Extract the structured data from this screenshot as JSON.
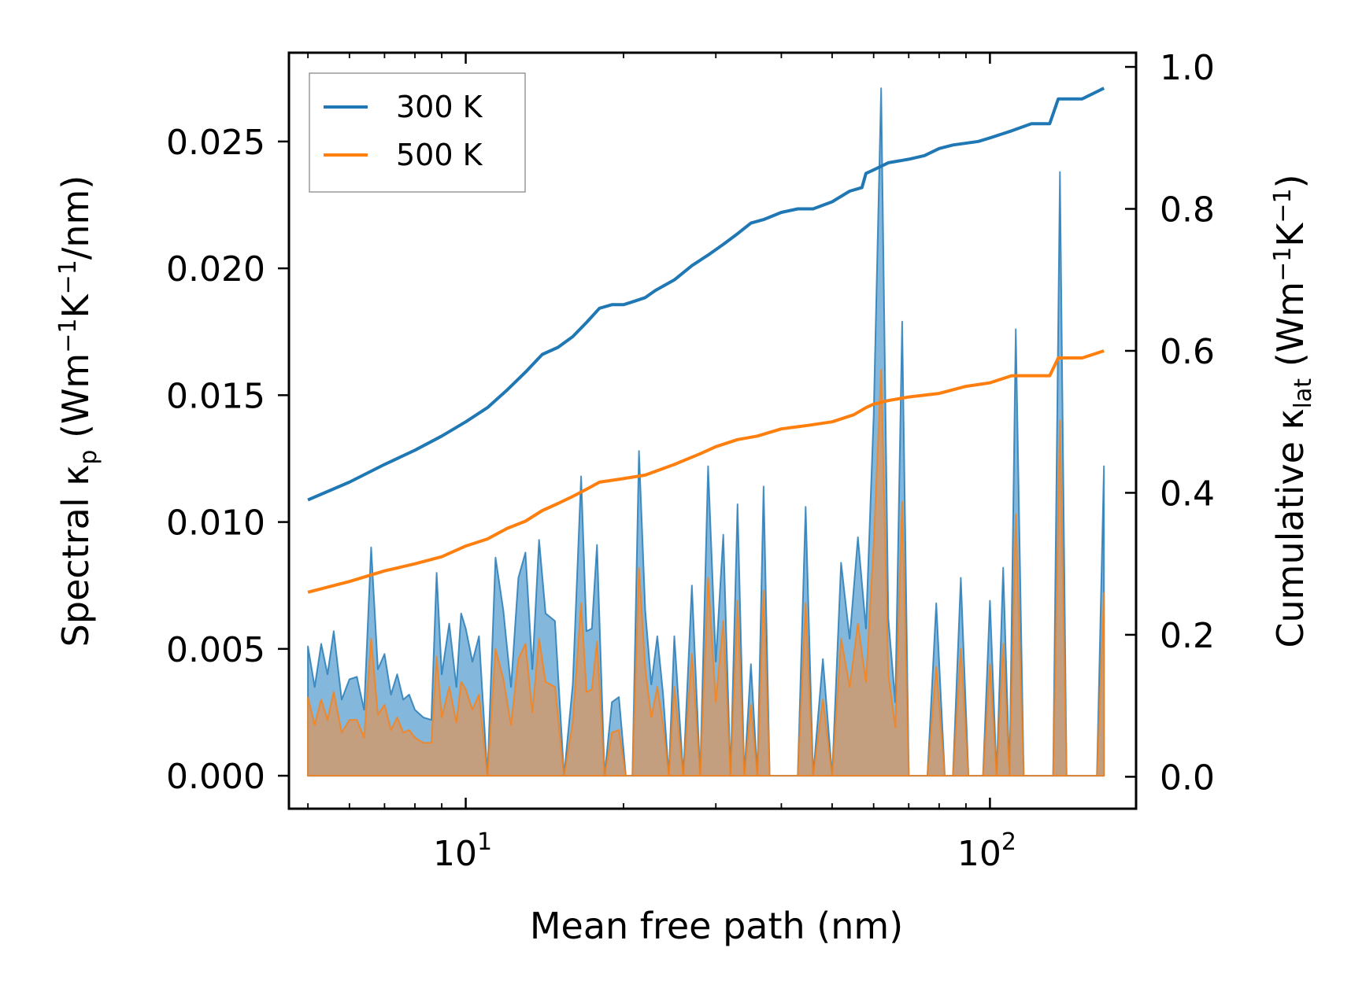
{
  "chart_data": {
    "type": "line",
    "x_scale": "log",
    "xlabel": "Mean free path (nm)",
    "ylabel_left": {
      "base": "Spectral κ",
      "sub": "p",
      "units_pre": " (Wm",
      "sup1": "−1",
      "mid": "K",
      "sup2": "−1",
      "units_post": "/nm)"
    },
    "ylabel_right": {
      "base": "Cumulative κ",
      "sub": "lat",
      "units_pre": " (Wm",
      "sup1": "−1",
      "mid": "K",
      "sup2": "−1",
      "units_post": ")"
    },
    "xlim": [
      4.6,
      190
    ],
    "ylim_left": [
      -0.0013,
      0.0285
    ],
    "ylim_right": [
      -0.045,
      1.02
    ],
    "x_ticks": [
      {
        "value": 10,
        "base": "10",
        "exp": "1"
      },
      {
        "value": 100,
        "base": "10",
        "exp": "2"
      }
    ],
    "y_ticks_left": [
      {
        "value": 0.0,
        "label": "0.000"
      },
      {
        "value": 0.005,
        "label": "0.005"
      },
      {
        "value": 0.01,
        "label": "0.010"
      },
      {
        "value": 0.015,
        "label": "0.015"
      },
      {
        "value": 0.02,
        "label": "0.020"
      },
      {
        "value": 0.025,
        "label": "0.025"
      }
    ],
    "y_ticks_right": [
      {
        "value": 0.0,
        "label": "0.0"
      },
      {
        "value": 0.2,
        "label": "0.2"
      },
      {
        "value": 0.4,
        "label": "0.4"
      },
      {
        "value": 0.6,
        "label": "0.6"
      },
      {
        "value": 0.8,
        "label": "0.8"
      },
      {
        "value": 1.0,
        "label": "1.0"
      }
    ],
    "legend": {
      "location": "upper-left",
      "entries": [
        "300 K",
        "500 K"
      ]
    },
    "colors": {
      "s300": "#1f77b4",
      "s500": "#ff7f0e",
      "fill300": "#5a9fd0",
      "fill500": "#cf9a6e"
    },
    "spectral_series": [
      {
        "name": "300 K",
        "x": [
          5.0,
          5.15,
          5.3,
          5.45,
          5.6,
          5.8,
          6.0,
          6.2,
          6.4,
          6.6,
          6.8,
          7.0,
          7.2,
          7.4,
          7.6,
          7.8,
          8.0,
          8.3,
          8.6,
          8.8,
          9.0,
          9.3,
          9.6,
          9.8,
          10.0,
          10.3,
          10.6,
          11.0,
          11.4,
          11.8,
          12.2,
          12.6,
          13.0,
          13.4,
          13.8,
          14.2,
          14.8,
          15.4,
          16.0,
          16.6,
          17.0,
          17.4,
          17.8,
          18.4,
          19.0,
          19.6,
          20.2,
          20.8,
          21.4,
          22.0,
          22.6,
          23.2,
          23.8,
          24.4,
          25.0,
          26.0,
          27.0,
          28.0,
          29.0,
          30.0,
          31.0,
          32.0,
          33.0,
          34.0,
          35.0,
          36.0,
          37.0,
          38.0,
          39.0,
          40.0,
          41.5,
          43.0,
          44.5,
          46.0,
          48.0,
          50.0,
          52.0,
          54.0,
          56.0,
          58.0,
          60.0,
          62.0,
          64.0,
          66.0,
          68.0,
          70.0,
          73.0,
          76.0,
          79.0,
          82.0,
          85.0,
          88.0,
          91.0,
          94.0,
          97.0,
          100.0,
          103.0,
          106.0,
          109.0,
          112.0,
          116.0,
          120.0,
          124.0,
          128.0,
          132.0,
          136.0,
          140.0,
          145.0,
          150.0,
          155.0,
          160.0,
          165.0
        ],
        "y": [
          0.0051,
          0.0035,
          0.0052,
          0.004,
          0.0057,
          0.003,
          0.0038,
          0.0039,
          0.0026,
          0.009,
          0.0042,
          0.0048,
          0.0032,
          0.004,
          0.003,
          0.0032,
          0.0026,
          0.0023,
          0.0022,
          0.008,
          0.004,
          0.006,
          0.0035,
          0.0064,
          0.0058,
          0.0045,
          0.0055,
          0.0,
          0.0086,
          0.0065,
          0.0035,
          0.0078,
          0.0088,
          0.0042,
          0.0093,
          0.0064,
          0.0061,
          0.0,
          0.0036,
          0.0118,
          0.0057,
          0.0058,
          0.0091,
          0.0,
          0.0029,
          0.0031,
          0.0,
          0.0,
          0.0128,
          0.0065,
          0.0036,
          0.0055,
          0.0032,
          0.0,
          0.0055,
          0.0,
          0.0075,
          0.0,
          0.0122,
          0.0045,
          0.0095,
          0.0,
          0.0107,
          0.0,
          0.0044,
          0.0,
          0.0114,
          0.0,
          0.0,
          0.0,
          0.0,
          0.0,
          0.0106,
          0.0,
          0.0046,
          0.0,
          0.0084,
          0.0054,
          0.0094,
          0.0058,
          0.0142,
          0.0271,
          0.0062,
          0.0029,
          0.0179,
          0.0,
          0.0,
          0.0,
          0.0068,
          0.0,
          0.0,
          0.0078,
          0.0,
          0.0,
          0.0,
          0.0069,
          0.0,
          0.0082,
          0.0,
          0.0176,
          0.0,
          0.0,
          0.0,
          0.0,
          0.0,
          0.0238,
          0.0,
          0.0,
          0.0,
          0.0,
          0.0,
          0.0122
        ]
      },
      {
        "name": "500 K",
        "x": [
          5.0,
          5.15,
          5.3,
          5.45,
          5.6,
          5.8,
          6.0,
          6.2,
          6.4,
          6.6,
          6.8,
          7.0,
          7.2,
          7.4,
          7.6,
          7.8,
          8.0,
          8.3,
          8.6,
          8.8,
          9.0,
          9.3,
          9.6,
          9.8,
          10.0,
          10.3,
          10.6,
          11.0,
          11.4,
          11.8,
          12.2,
          12.6,
          13.0,
          13.4,
          13.8,
          14.2,
          14.8,
          15.4,
          16.0,
          16.6,
          17.0,
          17.4,
          17.8,
          18.4,
          19.0,
          19.6,
          20.2,
          20.8,
          21.4,
          22.0,
          22.6,
          23.2,
          23.8,
          24.4,
          25.0,
          26.0,
          27.0,
          28.0,
          29.0,
          30.0,
          31.0,
          32.0,
          33.0,
          34.0,
          35.0,
          36.0,
          37.0,
          38.0,
          39.0,
          40.0,
          41.5,
          43.0,
          44.5,
          46.0,
          48.0,
          50.0,
          52.0,
          54.0,
          56.0,
          58.0,
          60.0,
          62.0,
          64.0,
          66.0,
          68.0,
          70.0,
          73.0,
          76.0,
          79.0,
          82.0,
          85.0,
          88.0,
          91.0,
          94.0,
          97.0,
          100.0,
          103.0,
          106.0,
          109.0,
          112.0,
          116.0,
          120.0,
          124.0,
          128.0,
          132.0,
          136.0,
          140.0,
          145.0,
          150.0,
          155.0,
          160.0,
          165.0
        ],
        "y": [
          0.0031,
          0.002,
          0.003,
          0.0022,
          0.0033,
          0.0017,
          0.0022,
          0.0022,
          0.0015,
          0.0054,
          0.0024,
          0.0028,
          0.0018,
          0.0023,
          0.0017,
          0.0018,
          0.0015,
          0.0013,
          0.0013,
          0.0047,
          0.0023,
          0.0035,
          0.0021,
          0.0037,
          0.0034,
          0.0026,
          0.0032,
          0.0,
          0.005,
          0.0038,
          0.002,
          0.0046,
          0.0052,
          0.0025,
          0.0054,
          0.0037,
          0.0035,
          0.0,
          0.0021,
          0.0068,
          0.0033,
          0.0034,
          0.0053,
          0.0,
          0.0017,
          0.0018,
          0.0,
          0.0,
          0.0082,
          0.0042,
          0.0023,
          0.0035,
          0.002,
          0.0,
          0.0035,
          0.0,
          0.0048,
          0.0,
          0.0078,
          0.0029,
          0.0061,
          0.0,
          0.0069,
          0.0,
          0.0028,
          0.0,
          0.0073,
          0.0,
          0.0,
          0.0,
          0.0,
          0.0,
          0.0068,
          0.0,
          0.003,
          0.0,
          0.0054,
          0.0035,
          0.006,
          0.0037,
          0.0091,
          0.016,
          0.004,
          0.0019,
          0.0108,
          0.0,
          0.0,
          0.0,
          0.0043,
          0.0,
          0.0,
          0.005,
          0.0,
          0.0,
          0.0,
          0.0044,
          0.0,
          0.0052,
          0.0,
          0.0103,
          0.0,
          0.0,
          0.0,
          0.0,
          0.0,
          0.014,
          0.0,
          0.0,
          0.0,
          0.0,
          0.0,
          0.0072
        ]
      }
    ],
    "cumulative_series": [
      {
        "name": "300 K",
        "x": [
          5.0,
          6.0,
          7.0,
          8.0,
          9.0,
          10.0,
          11.0,
          12.0,
          13.0,
          14.0,
          15.0,
          16.0,
          17.0,
          18.0,
          19.0,
          20.0,
          21.0,
          22.0,
          23.0,
          25.0,
          27.0,
          29.0,
          31.0,
          33.0,
          35.0,
          37.0,
          40.0,
          43.0,
          46.0,
          50.0,
          54.0,
          57.0,
          58.0,
          60.0,
          64.0,
          70.0,
          75.0,
          80.0,
          85.0,
          95.0,
          100.0,
          110.0,
          120.0,
          130.0,
          135.0,
          150.0,
          165.0
        ],
        "y": [
          0.39,
          0.415,
          0.44,
          0.46,
          0.48,
          0.5,
          0.52,
          0.545,
          0.57,
          0.595,
          0.605,
          0.62,
          0.64,
          0.66,
          0.665,
          0.665,
          0.67,
          0.675,
          0.685,
          0.7,
          0.72,
          0.735,
          0.75,
          0.765,
          0.78,
          0.785,
          0.795,
          0.8,
          0.8,
          0.81,
          0.825,
          0.83,
          0.85,
          0.855,
          0.865,
          0.87,
          0.875,
          0.885,
          0.89,
          0.895,
          0.9,
          0.91,
          0.92,
          0.92,
          0.955,
          0.955,
          0.97
        ]
      },
      {
        "name": "500 K",
        "x": [
          5.0,
          6.0,
          7.0,
          8.0,
          9.0,
          10.0,
          11.0,
          12.0,
          13.0,
          14.0,
          15.0,
          16.0,
          17.0,
          18.0,
          20.0,
          22.0,
          25.0,
          28.0,
          30.0,
          33.0,
          36.0,
          40.0,
          45.0,
          50.0,
          55.0,
          58.0,
          60.0,
          64.0,
          70.0,
          80.0,
          90.0,
          100.0,
          110.0,
          130.0,
          135.0,
          150.0,
          165.0
        ],
        "y": [
          0.26,
          0.275,
          0.29,
          0.3,
          0.31,
          0.325,
          0.335,
          0.35,
          0.36,
          0.375,
          0.385,
          0.395,
          0.405,
          0.415,
          0.42,
          0.425,
          0.44,
          0.455,
          0.465,
          0.475,
          0.48,
          0.49,
          0.495,
          0.5,
          0.51,
          0.52,
          0.525,
          0.53,
          0.535,
          0.54,
          0.55,
          0.555,
          0.565,
          0.565,
          0.59,
          0.59,
          0.6
        ]
      }
    ]
  }
}
